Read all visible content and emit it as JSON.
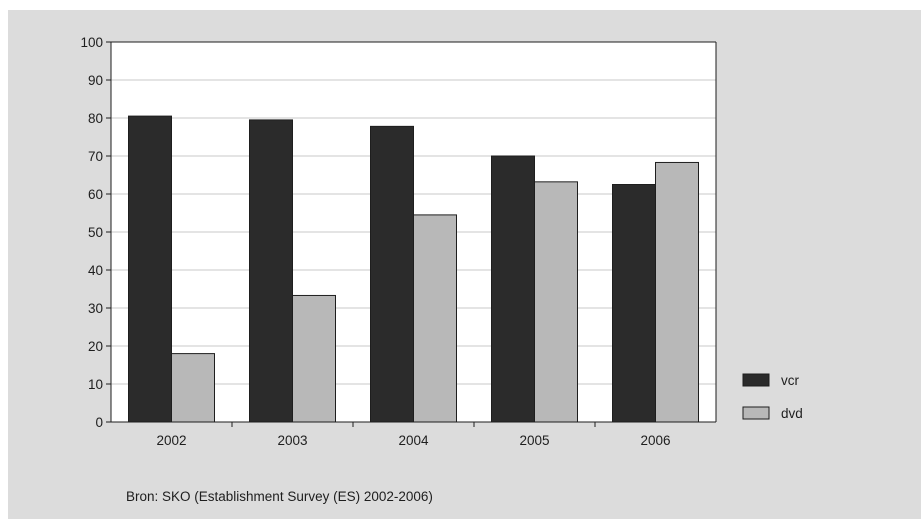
{
  "chart_data": {
    "type": "bar",
    "title": "",
    "xlabel": "",
    "ylabel": "",
    "categories": [
      "2002",
      "2003",
      "2004",
      "2005",
      "2006"
    ],
    "series": [
      {
        "name": "vcr",
        "values": [
          80.5,
          79.5,
          77.8,
          70.0,
          62.5
        ],
        "color": "#2b2b2b"
      },
      {
        "name": "dvd",
        "values": [
          18.0,
          33.3,
          54.5,
          63.2,
          68.3
        ],
        "color": "#b8b8b8"
      }
    ],
    "ylim": [
      0,
      100
    ],
    "yticks": [
      "0",
      "10",
      "20",
      "30",
      "40",
      "50",
      "60",
      "70",
      "80",
      "90",
      "100"
    ],
    "grid": true,
    "legend": "right",
    "plot_background": "#ffffff",
    "figure_background": "#dcdcdc"
  },
  "source": "Bron: SKO (Establishment Survey (ES) 2002-2006)"
}
